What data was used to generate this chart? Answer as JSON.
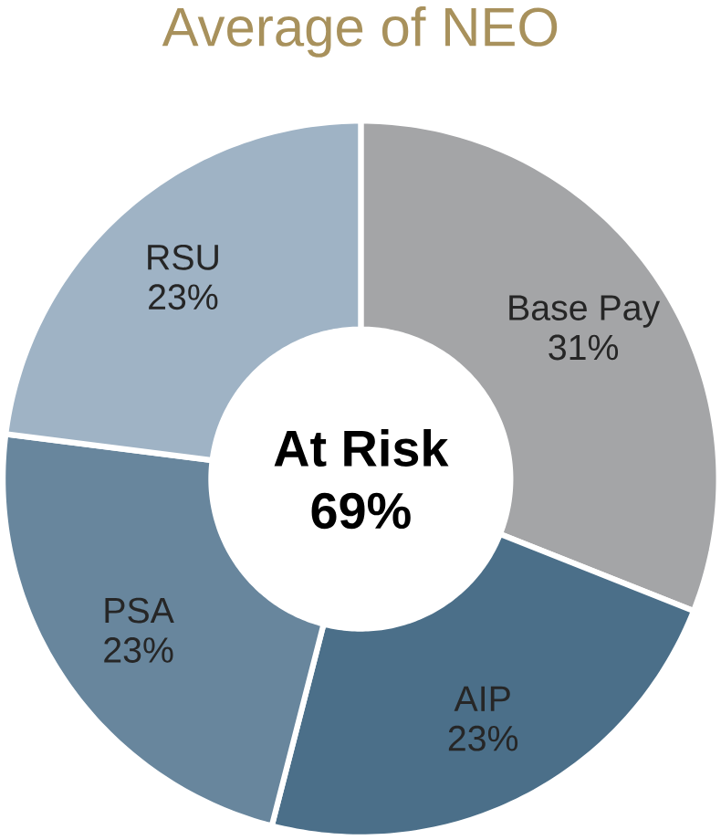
{
  "chart_data": {
    "type": "donut",
    "title": "Average of NEO",
    "categories": [
      "Base Pay",
      "AIP",
      "PSA",
      "RSU"
    ],
    "values": [
      31,
      23,
      23,
      23
    ],
    "colors": [
      "#a4a5a7",
      "#4b6f89",
      "#68869d",
      "#9fb3c5"
    ],
    "value_labels": [
      "31%",
      "23%",
      "23%",
      "23%"
    ],
    "annotations": [
      "At Risk",
      "69%"
    ]
  }
}
